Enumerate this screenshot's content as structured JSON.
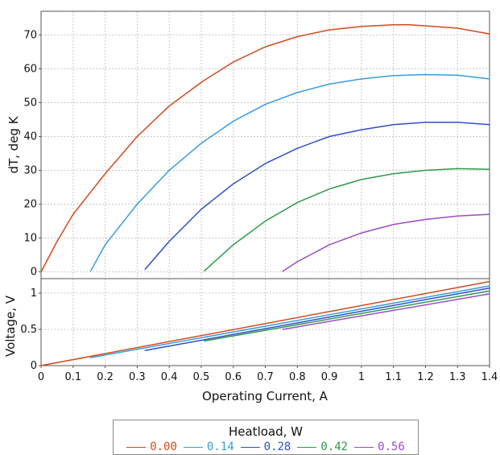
{
  "chart_data": [
    {
      "type": "line",
      "ylabel": "dT, deg K",
      "xlim": [
        0,
        1.4
      ],
      "ylim": [
        -2,
        77
      ],
      "y_ticks": [
        "0",
        "10",
        "20",
        "30",
        "40",
        "50",
        "60",
        "70"
      ],
      "grid": true,
      "series": [
        {
          "name": "0.00",
          "color": "#d04a1e",
          "x": [
            0,
            0.05,
            0.1,
            0.15,
            0.2,
            0.3,
            0.4,
            0.5,
            0.6,
            0.7,
            0.8,
            0.9,
            1.0,
            1.1,
            1.15,
            1.2,
            1.3,
            1.4
          ],
          "y": [
            0,
            9,
            17,
            23,
            29,
            40,
            49,
            56,
            62,
            66.5,
            69.5,
            71.5,
            72.5,
            73,
            73,
            72.7,
            72,
            70.3
          ]
        },
        {
          "name": "0.14",
          "color": "#3a9bd9",
          "x": [
            0.155,
            0.2,
            0.3,
            0.4,
            0.5,
            0.6,
            0.7,
            0.8,
            0.9,
            1.0,
            1.1,
            1.2,
            1.3,
            1.4
          ],
          "y": [
            0.3,
            8,
            20,
            30,
            38,
            44.5,
            49.5,
            53,
            55.5,
            57,
            58,
            58.3,
            58.1,
            57
          ]
        },
        {
          "name": "0.28",
          "color": "#2e4fc9",
          "x": [
            0.325,
            0.4,
            0.5,
            0.6,
            0.7,
            0.8,
            0.9,
            1.0,
            1.1,
            1.2,
            1.3,
            1.4
          ],
          "y": [
            0.8,
            9,
            18.5,
            26,
            32,
            36.5,
            40,
            42,
            43.5,
            44.2,
            44.2,
            43.5
          ]
        },
        {
          "name": "0.42",
          "color": "#2e9a4a",
          "x": [
            0.51,
            0.6,
            0.7,
            0.8,
            0.9,
            1.0,
            1.1,
            1.2,
            1.3,
            1.4
          ],
          "y": [
            0.3,
            8,
            15,
            20.5,
            24.5,
            27.3,
            29,
            30,
            30.5,
            30.3
          ]
        },
        {
          "name": "0.56",
          "color": "#9b4cc4",
          "x": [
            0.755,
            0.8,
            0.9,
            1.0,
            1.1,
            1.2,
            1.3,
            1.4
          ],
          "y": [
            0.2,
            3,
            8,
            11.5,
            14,
            15.5,
            16.5,
            17
          ]
        }
      ]
    },
    {
      "type": "line",
      "xlabel": "Operating Current, A",
      "ylabel": "Voltage, V",
      "xlim": [
        0,
        1.4
      ],
      "ylim": [
        0,
        1.2
      ],
      "x_ticks": [
        "0",
        "0.1",
        "0.2",
        "0.3",
        "0.4",
        "0.5",
        "0.6",
        "0.7",
        "0.8",
        "0.9",
        "1",
        "1.1",
        "1.2",
        "1.3",
        "1.4"
      ],
      "y_ticks": [
        "0",
        "0.5",
        "1"
      ],
      "grid": true,
      "series": [
        {
          "name": "0.00",
          "color": "#d04a1e",
          "x": [
            0,
            1.4
          ],
          "y": [
            0,
            1.16
          ]
        },
        {
          "name": "0.14",
          "color": "#3a9bd9",
          "x": [
            0.155,
            1.4
          ],
          "y": [
            0.11,
            1.1
          ]
        },
        {
          "name": "0.28",
          "color": "#2e4fc9",
          "x": [
            0.325,
            1.4
          ],
          "y": [
            0.21,
            1.07
          ]
        },
        {
          "name": "0.42",
          "color": "#2e9a4a",
          "x": [
            0.51,
            1.4
          ],
          "y": [
            0.34,
            1.03
          ]
        },
        {
          "name": "0.56",
          "color": "#9b4cc4",
          "x": [
            0.755,
            1.4
          ],
          "y": [
            0.5,
            0.99
          ]
        }
      ]
    }
  ],
  "legend": {
    "title": "Heatload, W",
    "placement": "bottom",
    "items": [
      {
        "label": "0.00",
        "color": "#d04a1e"
      },
      {
        "label": "0.14",
        "color": "#3a9bd9"
      },
      {
        "label": "0.28",
        "color": "#2e4fc9"
      },
      {
        "label": "0.42",
        "color": "#2e9a4a"
      },
      {
        "label": "0.56",
        "color": "#9b4cc4"
      }
    ]
  }
}
